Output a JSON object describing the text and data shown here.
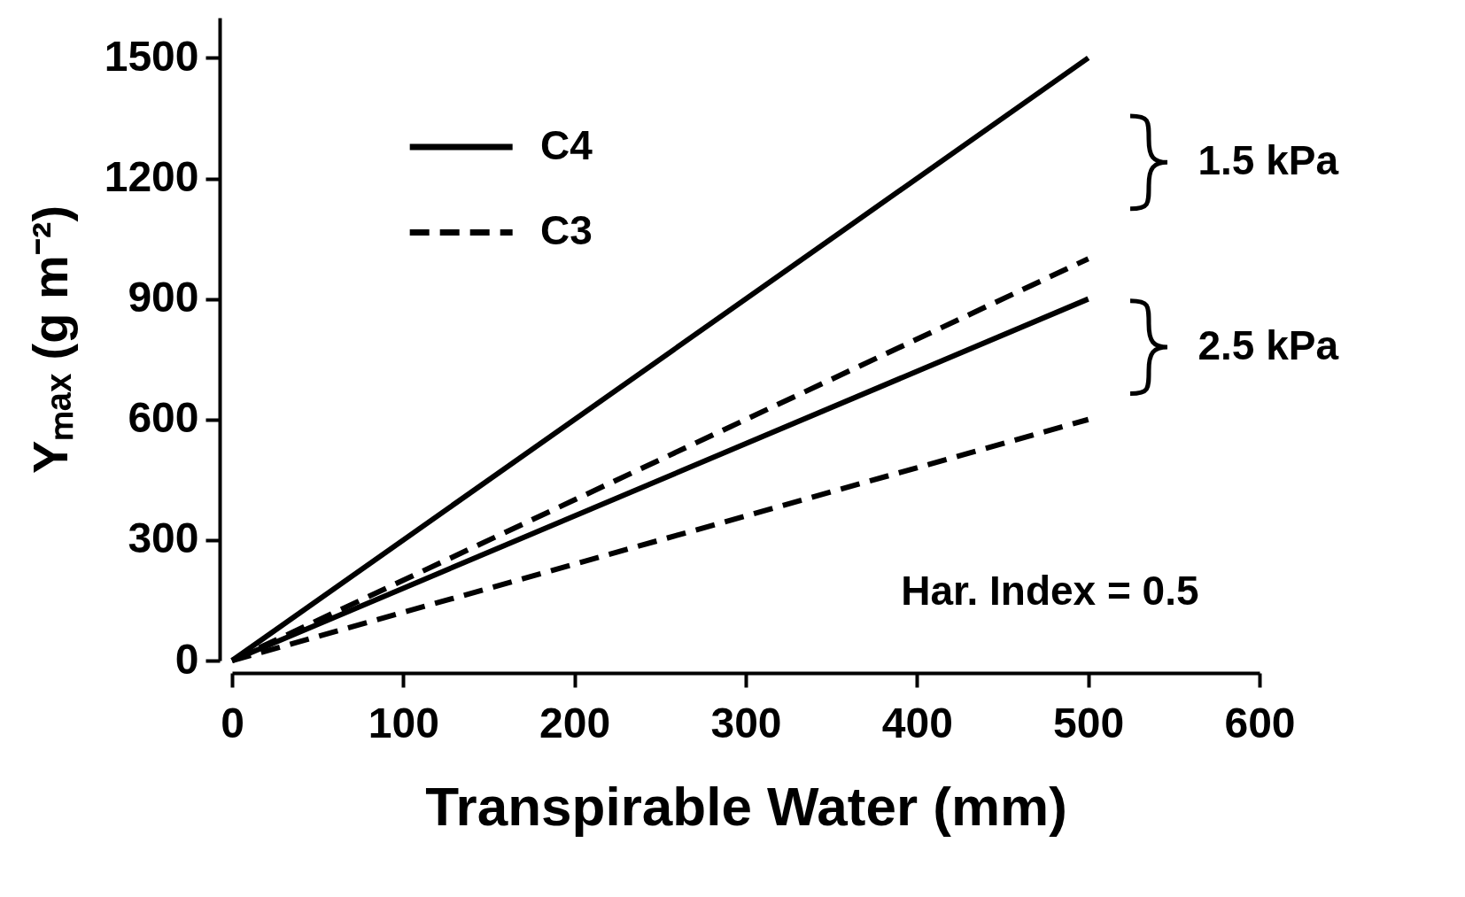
{
  "chart_data": {
    "type": "line",
    "xlabel": "Transpirable Water (mm)",
    "ylabel": "Yₘₐₓ (g m⁻²)",
    "x": [
      0,
      500
    ],
    "series": [
      {
        "name": "C4",
        "color": "#000000",
        "line_style": "solid",
        "values": [
          0,
          1500
        ]
      },
      {
        "name": "C3",
        "color": "#000000",
        "line_style": "dashed",
        "values": [
          0,
          1000
        ]
      },
      {
        "color": "#000000",
        "line_style": "solid",
        "values": [
          0,
          900
        ]
      },
      {
        "color": "#000000",
        "line_style": "dashed",
        "values": [
          0,
          600
        ]
      }
    ],
    "xlim": [
      0,
      600
    ],
    "xticks": [
      0,
      100,
      200,
      300,
      400,
      500,
      600
    ],
    "ylim": [
      0,
      1600
    ],
    "yticks": [
      0,
      300,
      600,
      900,
      {
        "value": 1200,
        "label": "1200"
      },
      {
        "value": 1500,
        "label": "1500"
      }
    ],
    "legend": "top left",
    "annotations": [
      "1.5 kPa",
      "2.5 kPa",
      "Har. Index = 0.5"
    ]
  }
}
